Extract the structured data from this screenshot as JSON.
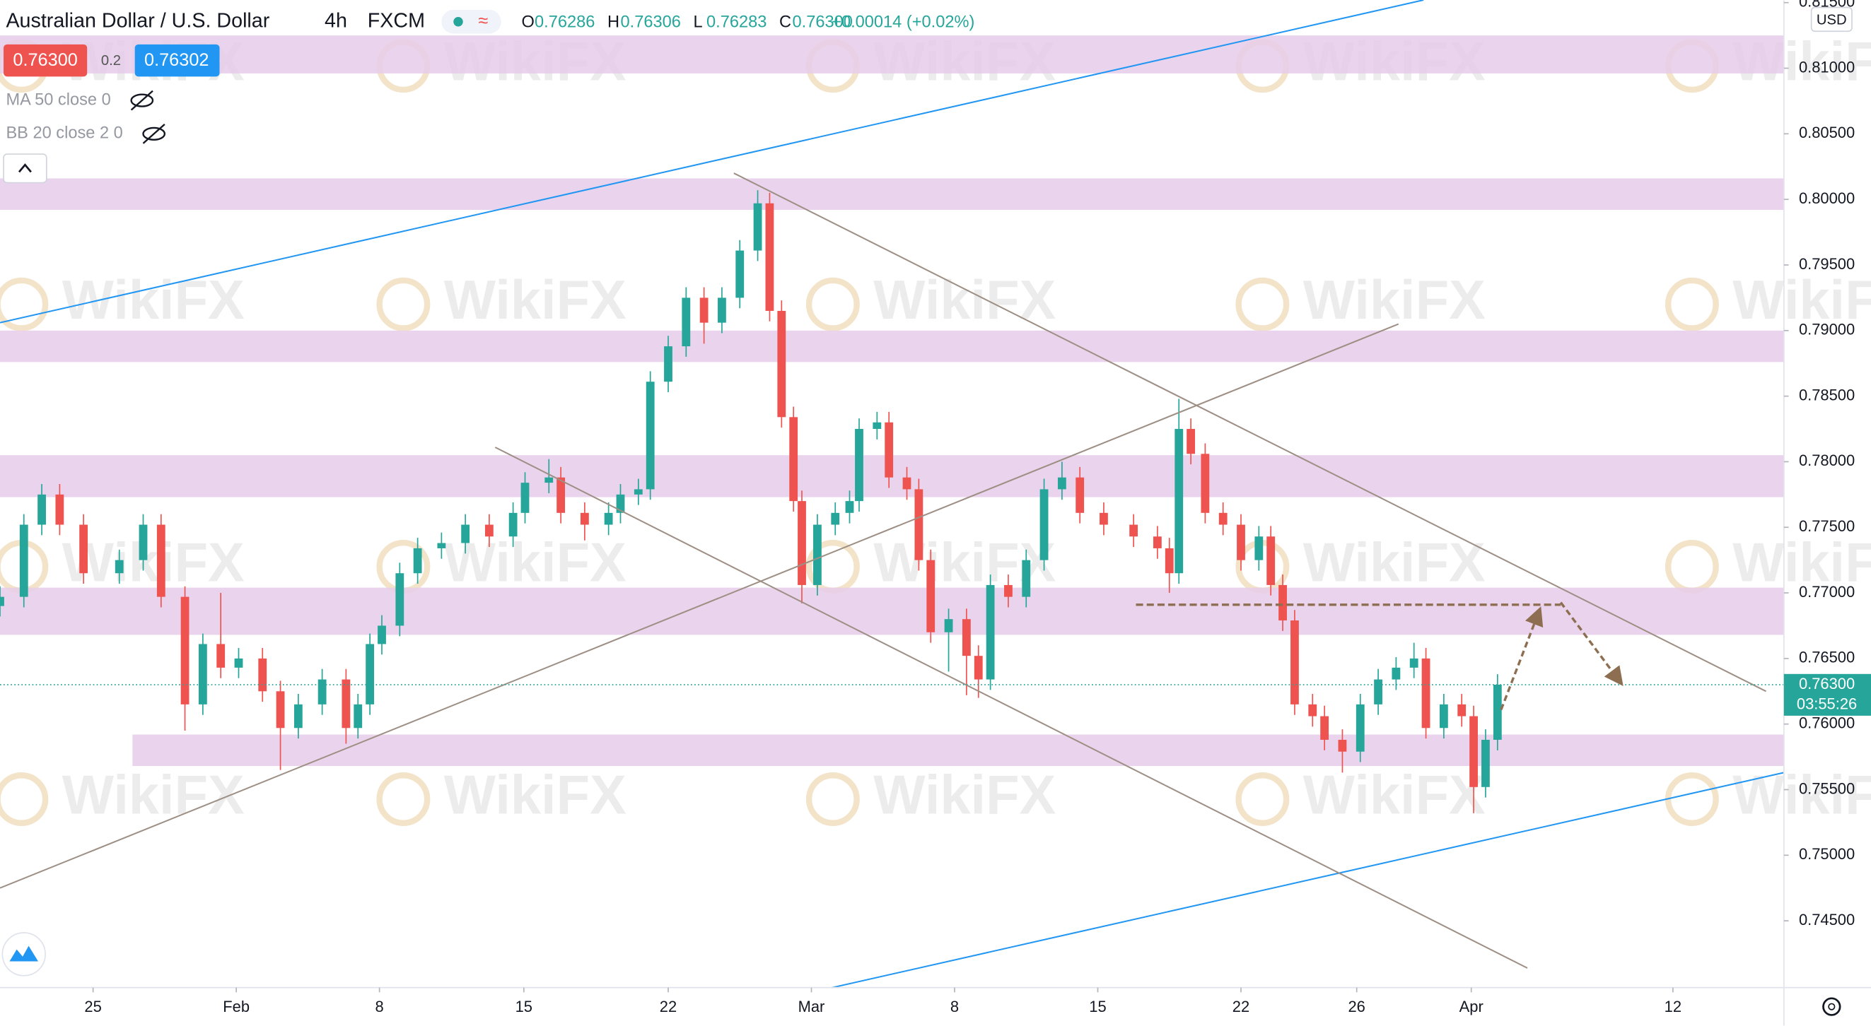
{
  "header": {
    "title": "Australian Dollar / U.S. Dollar",
    "interval": "4h",
    "source": "FXCM",
    "ohlc": [
      {
        "label": "O",
        "value": "0.76286"
      },
      {
        "label": "H",
        "value": "0.76306"
      },
      {
        "label": "L",
        "value": "0.76283"
      },
      {
        "label": "C",
        "value": "0.76300"
      }
    ],
    "change": "+0.00014 (+0.02%)",
    "sell": "0.76300",
    "spread": "0.2",
    "buy": "0.76302",
    "indicators": [
      "MA 50 close 0",
      "BB 20 close 2 0"
    ]
  },
  "chart_data": {
    "type": "candlestick",
    "x": [
      0,
      5,
      8.75,
      12.5,
      17.5,
      25,
      30,
      33.75,
      38.75,
      42.5,
      46.25,
      50,
      55,
      58.75,
      62.5,
      67.5,
      72.5,
      75,
      77.5,
      80,
      83.75,
      87.5,
      92.5,
      97.5,
      102.5,
      107.5,
      110,
      115,
      117.5,
      122.5,
      127.5,
      130,
      133.75,
      136.25,
      140,
      143.75,
      147.5,
      151.25,
      155,
      158.75,
      161.25,
      163.75,
      166.25,
      168,
      171.25,
      175,
      178,
      180,
      183.75,
      186.25,
      190,
      192.5,
      195,
      198.75,
      202.5,
      205,
      207.5,
      211.25,
      215,
      218.75,
      222.5,
      226.25,
      231.25,
      237.5,
      242.5,
      245,
      247,
      249.5,
      252.5,
      256.25,
      260,
      263.75,
      266.25,
      268.75,
      271.25,
      275,
      277.5,
      281.25,
      285,
      288.75,
      292.5,
      296.25,
      298.75,
      302.5,
      306.25,
      308.75,
      311.25,
      313.75
    ],
    "open": [
      0.769,
      0.7697,
      0.7752,
      0.7775,
      0.7752,
      0.7715,
      0.7725,
      0.7752,
      0.7697,
      0.7615,
      0.7661,
      0.7643,
      0.765,
      0.7625,
      0.7597,
      0.7615,
      0.7634,
      0.7597,
      0.7615,
      0.7661,
      0.7675,
      0.7715,
      0.7734,
      0.7738,
      0.7752,
      0.7743,
      0.7761,
      0.7784,
      0.7788,
      0.7761,
      0.7752,
      0.7761,
      0.7775,
      0.7779,
      0.7861,
      0.7888,
      0.7925,
      0.7906,
      0.7925,
      0.7961,
      0.7997,
      0.7915,
      0.7834,
      0.777,
      0.7706,
      0.7752,
      0.7761,
      0.777,
      0.7825,
      0.783,
      0.7788,
      0.7779,
      0.7725,
      0.767,
      0.768,
      0.7652,
      0.7634,
      0.7706,
      0.7697,
      0.7725,
      0.7779,
      0.7788,
      0.7761,
      0.7752,
      0.7743,
      0.7734,
      0.7715,
      0.7825,
      0.7806,
      0.7761,
      0.7752,
      0.7725,
      0.7743,
      0.7706,
      0.7679,
      0.7615,
      0.7606,
      0.7588,
      0.7579,
      0.7615,
      0.7634,
      0.7643,
      0.765,
      0.7597,
      0.7615,
      0.7606,
      0.7552,
      0.7588
    ],
    "high": [
      0.7705,
      0.776,
      0.7783,
      0.7783,
      0.776,
      0.7733,
      0.776,
      0.776,
      0.7705,
      0.7669,
      0.77,
      0.7658,
      0.7658,
      0.7633,
      0.7623,
      0.7642,
      0.7642,
      0.7623,
      0.7669,
      0.7683,
      0.7723,
      0.7742,
      0.7746,
      0.776,
      0.776,
      0.7769,
      0.7792,
      0.7802,
      0.7796,
      0.7769,
      0.7769,
      0.7783,
      0.7787,
      0.7869,
      0.7896,
      0.7933,
      0.7933,
      0.7933,
      0.7969,
      0.8007,
      0.8005,
      0.7923,
      0.7842,
      0.7778,
      0.776,
      0.7769,
      0.7778,
      0.7833,
      0.7838,
      0.7838,
      0.7796,
      0.7787,
      0.7733,
      0.7688,
      0.7688,
      0.766,
      0.7714,
      0.7714,
      0.7733,
      0.7787,
      0.78,
      0.7796,
      0.7769,
      0.776,
      0.7751,
      0.7742,
      0.7848,
      0.7833,
      0.7814,
      0.7769,
      0.776,
      0.7751,
      0.7751,
      0.7714,
      0.7687,
      0.7623,
      0.7614,
      0.7596,
      0.7623,
      0.7642,
      0.7651,
      0.7662,
      0.7658,
      0.7623,
      0.7623,
      0.7614,
      0.7596,
      0.7638
    ],
    "low": [
      0.7682,
      0.7689,
      0.7744,
      0.7744,
      0.7707,
      0.7707,
      0.7717,
      0.7689,
      0.7595,
      0.7607,
      0.7635,
      0.7635,
      0.7617,
      0.7565,
      0.7589,
      0.7607,
      0.7585,
      0.7589,
      0.7607,
      0.7653,
      0.7667,
      0.7707,
      0.7726,
      0.773,
      0.7735,
      0.7735,
      0.7753,
      0.7776,
      0.7753,
      0.774,
      0.7744,
      0.7753,
      0.7767,
      0.7771,
      0.7853,
      0.788,
      0.789,
      0.7898,
      0.7917,
      0.7953,
      0.7907,
      0.7826,
      0.7762,
      0.7692,
      0.7698,
      0.7744,
      0.7753,
      0.7762,
      0.7817,
      0.778,
      0.7771,
      0.7717,
      0.7662,
      0.764,
      0.7622,
      0.762,
      0.7626,
      0.7689,
      0.7689,
      0.7717,
      0.7771,
      0.7753,
      0.7744,
      0.7735,
      0.7726,
      0.77,
      0.7707,
      0.7798,
      0.7753,
      0.7744,
      0.7717,
      0.7717,
      0.7698,
      0.7671,
      0.7607,
      0.7598,
      0.758,
      0.7563,
      0.7571,
      0.7607,
      0.7626,
      0.7635,
      0.7589,
      0.7589,
      0.7598,
      0.7532,
      0.7544,
      0.758
    ],
    "close": [
      0.7697,
      0.7752,
      0.7775,
      0.7752,
      0.7715,
      0.7725,
      0.7752,
      0.7697,
      0.7615,
      0.7661,
      0.7643,
      0.765,
      0.7625,
      0.7597,
      0.7615,
      0.7634,
      0.7597,
      0.7615,
      0.7661,
      0.7675,
      0.7715,
      0.7734,
      0.7738,
      0.7752,
      0.7743,
      0.7761,
      0.7784,
      0.7788,
      0.7761,
      0.7752,
      0.7761,
      0.7775,
      0.7779,
      0.7861,
      0.7888,
      0.7925,
      0.7906,
      0.7925,
      0.7961,
      0.7997,
      0.7915,
      0.7834,
      0.777,
      0.7706,
      0.7752,
      0.7761,
      0.777,
      0.7825,
      0.783,
      0.7788,
      0.7779,
      0.7725,
      0.767,
      0.768,
      0.7652,
      0.7634,
      0.7706,
      0.7697,
      0.7725,
      0.7779,
      0.7788,
      0.7761,
      0.7752,
      0.7743,
      0.7734,
      0.7715,
      0.7825,
      0.7806,
      0.7761,
      0.7752,
      0.7725,
      0.7743,
      0.7706,
      0.7679,
      0.7615,
      0.7606,
      0.7588,
      0.7579,
      0.7615,
      0.7634,
      0.7643,
      0.765,
      0.7597,
      0.7615,
      0.7606,
      0.7552,
      0.7588,
      0.763
    ],
    "up_color": "#26a69a",
    "down_color": "#ef5350",
    "xlim": [
      0,
      373.75
    ],
    "xticks": [
      {
        "value": 19.5,
        "label": "25"
      },
      {
        "value": 49.5,
        "label": "Feb"
      },
      {
        "value": 79.5,
        "label": "8"
      },
      {
        "value": 109.75,
        "label": "15"
      },
      {
        "value": 140,
        "label": "22"
      },
      {
        "value": 170,
        "label": "Mar"
      },
      {
        "value": 200,
        "label": "8"
      },
      {
        "value": 230,
        "label": "15"
      },
      {
        "value": 260,
        "label": "22"
      },
      {
        "value": 284.25,
        "label": "26"
      },
      {
        "value": 308.25,
        "label": "Apr"
      },
      {
        "value": 350.5,
        "label": "12"
      }
    ],
    "ylim": [
      0.73991,
      0.81518
    ],
    "yticks": [
      {
        "value": 0.745,
        "label": "0.74500"
      },
      {
        "value": 0.75,
        "label": "0.75000"
      },
      {
        "value": 0.755,
        "label": "0.75500"
      },
      {
        "value": 0.76,
        "label": "0.76000"
      },
      {
        "value": 0.765,
        "label": "0.76500"
      },
      {
        "value": 0.77,
        "label": "0.77000"
      },
      {
        "value": 0.775,
        "label": "0.77500"
      },
      {
        "value": 0.78,
        "label": "0.78000"
      },
      {
        "value": 0.785,
        "label": "0.78500"
      },
      {
        "value": 0.79,
        "label": "0.79000"
      },
      {
        "value": 0.795,
        "label": "0.79500"
      },
      {
        "value": 0.8,
        "label": "0.80000"
      },
      {
        "value": 0.805,
        "label": "0.80500"
      },
      {
        "value": 0.81,
        "label": "0.81000"
      },
      {
        "value": 0.815,
        "label": "0.81500"
      }
    ],
    "currency": "USD",
    "last_price": {
      "value": 0.763,
      "label": "0.76300",
      "countdown": "03:55:26",
      "color": "#26a69a"
    },
    "zone_color": "#e6cdea",
    "zones": [
      {
        "x0": 0,
        "range": [
          0.8096,
          0.8125
        ]
      },
      {
        "x0": 0,
        "range": [
          0.7992,
          0.8016
        ]
      },
      {
        "x0": 0,
        "range": [
          0.7876,
          0.79
        ]
      },
      {
        "x0": 0,
        "range": [
          0.7773,
          0.7805
        ]
      },
      {
        "x0": 0,
        "range": [
          0.7668,
          0.7704
        ]
      },
      {
        "x0": 27.75,
        "range": [
          0.7568,
          0.7592
        ]
      }
    ],
    "trendlines": [
      {
        "color": "#2196f3",
        "x": [
          0,
          298.25
        ],
        "y": [
          0.7906,
          0.8152
        ]
      },
      {
        "color": "#2196f3",
        "x": [
          174.25,
          373.75
        ],
        "y": [
          0.7399,
          0.7563
        ]
      },
      {
        "color": "#9e8f85",
        "x": [
          153.75,
          370
        ],
        "y": [
          0.802,
          0.7625
        ]
      },
      {
        "color": "#9e8f85",
        "x": [
          103.75,
          320
        ],
        "y": [
          0.7811,
          0.7414
        ]
      },
      {
        "color": "#9e8f85",
        "x": [
          0,
          293
        ],
        "y": [
          0.7475,
          0.7905
        ]
      }
    ],
    "dashed_level": {
      "price": 0.7691,
      "x": [
        238,
        327
      ],
      "color": "#8d6e51"
    },
    "watermark": "WikiFX"
  }
}
